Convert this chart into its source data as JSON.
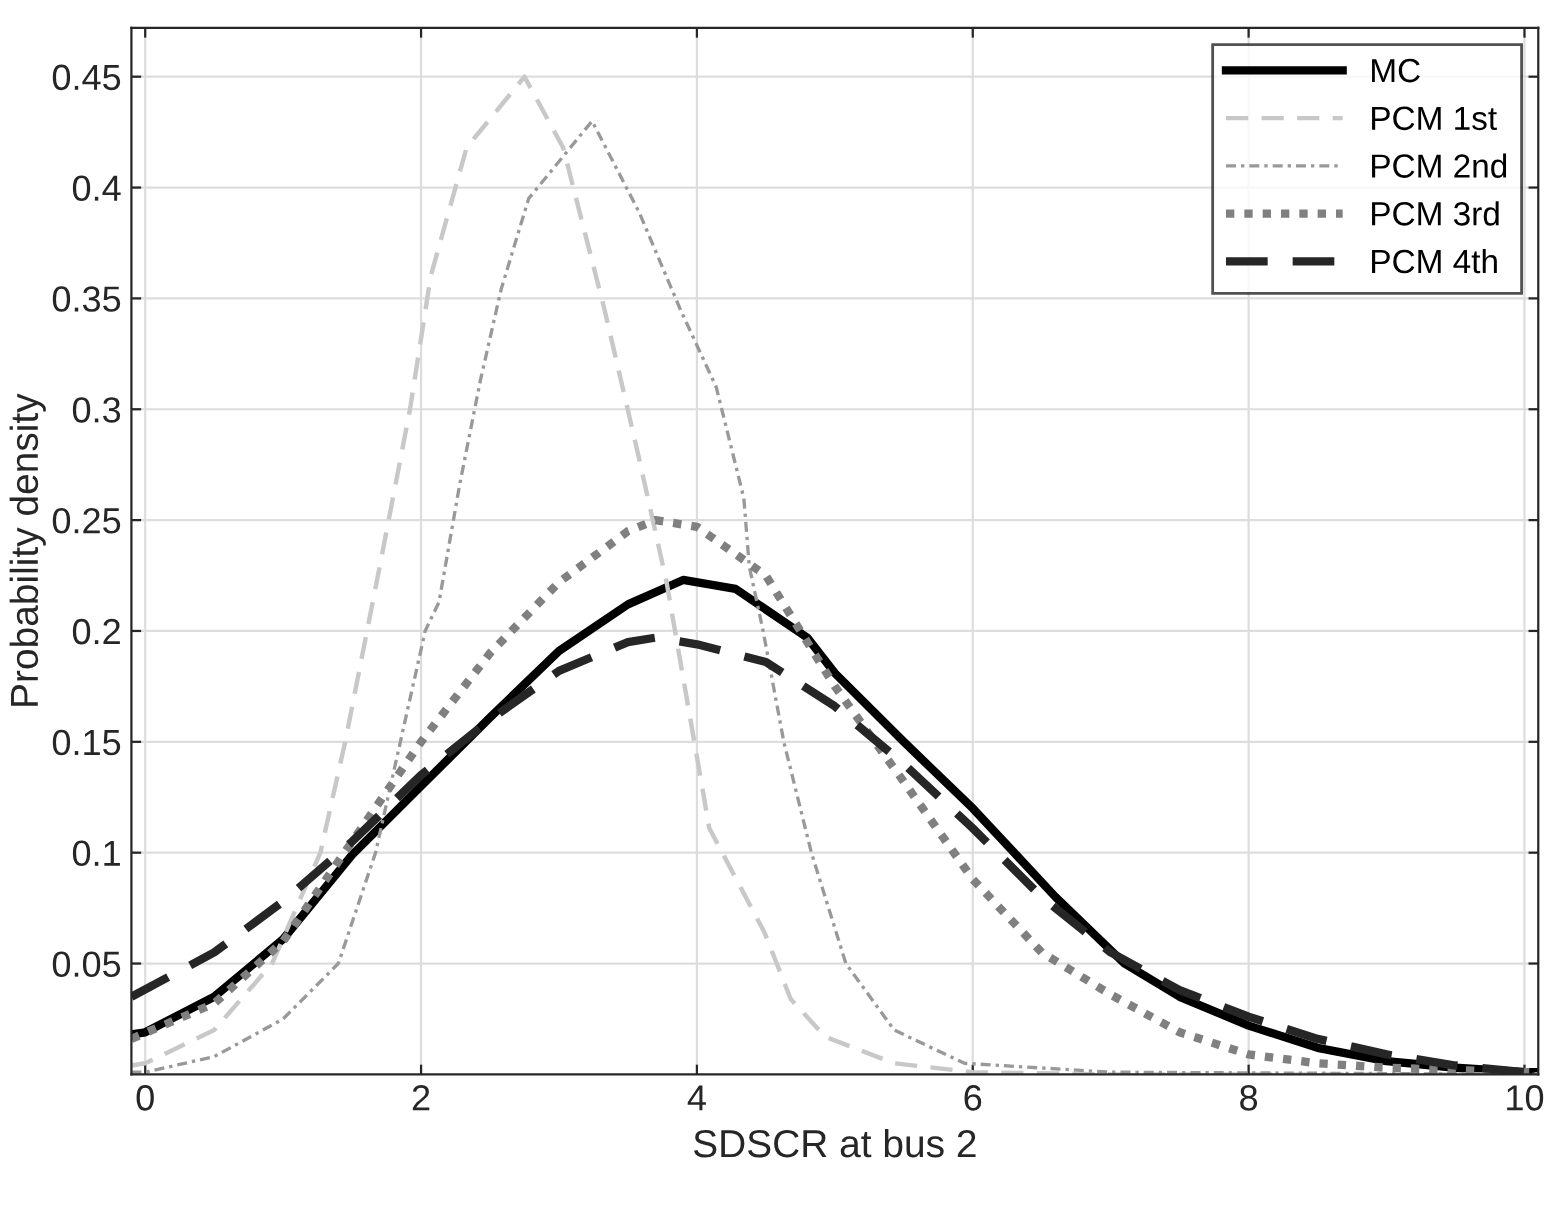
{
  "chart_data": {
    "type": "line",
    "xlabel": "SDSCR at bus 2",
    "ylabel": "Probability density",
    "xlim": [
      -0.1,
      10.1
    ],
    "xticks": [
      0,
      2,
      4,
      6,
      8,
      10
    ],
    "ylim": [
      0,
      0.472
    ],
    "yticks": [
      0.05,
      0.1,
      0.15,
      0.2,
      0.25,
      0.3,
      0.35,
      0.4,
      0.45
    ],
    "grid": true,
    "legend": "top right",
    "series": [
      {
        "name": "MC",
        "color": "#000000",
        "line_style": "solid",
        "x": [
          -0.1,
          0,
          0.5,
          1,
          1.5,
          2,
          2.5,
          3,
          3.5,
          3.9,
          4.28,
          4.8,
          5,
          5.5,
          6,
          6.3,
          6.6,
          7.1,
          7.5,
          8,
          8.5,
          9,
          9.5,
          10,
          10.1
        ],
        "values": [
          0.018,
          0.019,
          0.035,
          0.061,
          0.099,
          0.13,
          0.161,
          0.191,
          0.212,
          0.223,
          0.219,
          0.197,
          0.181,
          0.15,
          0.12,
          0.1,
          0.08,
          0.05,
          0.035,
          0.022,
          0.012,
          0.006,
          0.003,
          0.001,
          0.001
        ]
      },
      {
        "name": "PCM 1st",
        "color": "#c8c8c8",
        "line_style": "dashed",
        "x": [
          -0.1,
          0,
          0.5,
          0.92,
          1.27,
          1.45,
          1.7,
          1.92,
          2.07,
          2.33,
          2.75,
          3.03,
          3.33,
          3.58,
          3.78,
          4.09,
          4.49,
          4.68,
          4.93,
          5.43,
          6,
          7,
          10.1
        ],
        "values": [
          0.004,
          0.005,
          0.02,
          0.05,
          0.1,
          0.15,
          0.229,
          0.3,
          0.36,
          0.418,
          0.45,
          0.418,
          0.345,
          0.278,
          0.222,
          0.111,
          0.064,
          0.034,
          0.017,
          0.005,
          0.001,
          0,
          0
        ]
      },
      {
        "name": "PCM 2nd",
        "color": "#999999",
        "line_style": "dashdot",
        "x": [
          -0.1,
          0,
          0.5,
          1,
          1.4,
          1.67,
          1.85,
          2.03,
          2.13,
          2.28,
          2.43,
          2.58,
          2.78,
          3.24,
          3.58,
          3.88,
          4.14,
          4.34,
          4.38,
          4.48,
          4.63,
          4.83,
          5.08,
          5.43,
          5.94,
          7,
          10.1
        ],
        "values": [
          0.001,
          0.001,
          0.008,
          0.025,
          0.05,
          0.1,
          0.15,
          0.2,
          0.213,
          0.266,
          0.313,
          0.354,
          0.395,
          0.43,
          0.389,
          0.345,
          0.31,
          0.26,
          0.229,
          0.2,
          0.15,
          0.1,
          0.05,
          0.02,
          0.005,
          0.001,
          0
        ]
      },
      {
        "name": "PCM 3rd",
        "color": "#808080",
        "line_style": "dotted",
        "x": [
          -0.1,
          0.5,
          1,
          1.5,
          2,
          2.5,
          3,
          3.5,
          3.7,
          4,
          4.5,
          5,
          5.5,
          6,
          6.5,
          7,
          7.5,
          8,
          8.5,
          9,
          10,
          10.1
        ],
        "values": [
          0.016,
          0.032,
          0.06,
          0.105,
          0.15,
          0.19,
          0.222,
          0.245,
          0.25,
          0.247,
          0.225,
          0.175,
          0.132,
          0.088,
          0.055,
          0.036,
          0.019,
          0.009,
          0.005,
          0.003,
          0.001,
          0.001
        ]
      },
      {
        "name": "PCM 4th",
        "color": "#262626",
        "line_style": "dashed",
        "x": [
          -0.1,
          0.5,
          1,
          1.5,
          2,
          2.5,
          3,
          3.5,
          3.7,
          4,
          4.5,
          5,
          5.5,
          6,
          6.5,
          7,
          7.5,
          8,
          8.5,
          9,
          9.5,
          10,
          10.1
        ],
        "values": [
          0.035,
          0.055,
          0.078,
          0.105,
          0.135,
          0.16,
          0.182,
          0.195,
          0.197,
          0.194,
          0.186,
          0.166,
          0.14,
          0.111,
          0.08,
          0.055,
          0.038,
          0.026,
          0.016,
          0.009,
          0.004,
          0.001,
          0.001
        ]
      }
    ]
  }
}
